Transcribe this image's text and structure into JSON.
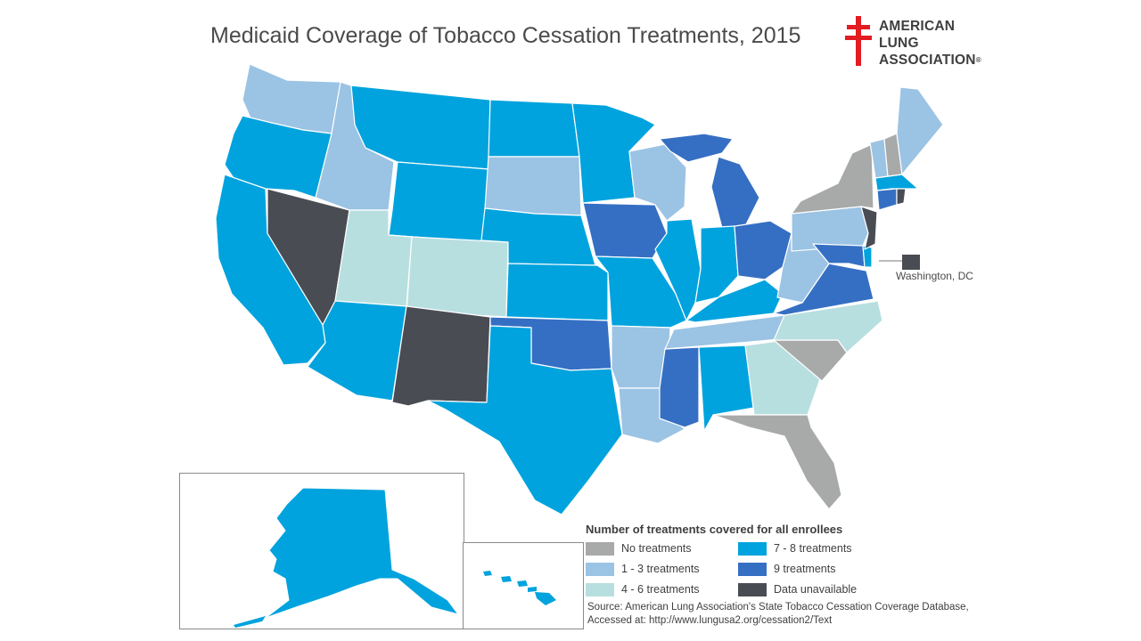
{
  "title": "Medicaid Coverage of Tobacco Cessation Treatments, 2015",
  "logo": {
    "icon": "double-barred-cross-icon",
    "line1": "AMERICAN",
    "line2": "LUNG",
    "line3": "ASSOCIATION",
    "registered": "®",
    "color": "#e31b23"
  },
  "dc_label": "Washington, DC",
  "legend": {
    "title": "Number of treatments covered for all enrollees",
    "items": [
      {
        "label": "No treatments",
        "color": "#a8aaa9"
      },
      {
        "label": "1 - 3 treatments",
        "color": "#9bc3e4"
      },
      {
        "label": "4 - 6 treatments",
        "color": "#b8dfe0"
      },
      {
        "label": "7 - 8 treatments",
        "color": "#00a3dd"
      },
      {
        "label": "9 treatments",
        "color": "#356fc3"
      },
      {
        "label": "Data unavailable",
        "color": "#4a4c54"
      }
    ]
  },
  "source": {
    "line1": "Source: American Lung Association's State Tobacco Cessation Coverage Database,",
    "line2": "Accessed at: http://www.lungusa2.org/cessation2/Text"
  }
}
